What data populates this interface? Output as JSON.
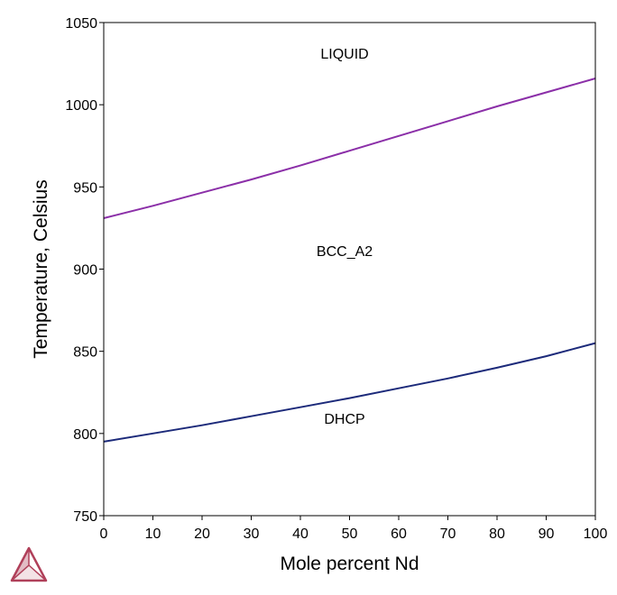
{
  "chart_data": {
    "type": "line",
    "title": "",
    "xlabel": "Mole percent Nd",
    "ylabel": "Temperature, Celsius",
    "xlim": [
      0,
      100
    ],
    "ylim": [
      750,
      1050
    ],
    "xticks": [
      0,
      10,
      20,
      30,
      40,
      50,
      60,
      70,
      80,
      90,
      100
    ],
    "yticks": [
      750,
      800,
      850,
      900,
      950,
      1000,
      1050
    ],
    "grid": false,
    "series": [
      {
        "color": "#8b2fa8",
        "x": [
          0,
          10,
          20,
          30,
          40,
          50,
          60,
          70,
          80,
          90,
          100
        ],
        "y": [
          931,
          938.5,
          946.5,
          954.5,
          963,
          972,
          981,
          990,
          999,
          1007.5,
          1016
        ]
      },
      {
        "color": "#1c2a7a",
        "x": [
          0,
          10,
          20,
          30,
          40,
          50,
          60,
          70,
          80,
          90,
          100
        ],
        "y": [
          795,
          800,
          805,
          810.5,
          816,
          821.5,
          827.5,
          833.5,
          840,
          847,
          855
        ]
      }
    ],
    "annotations": [
      {
        "text": "LIQUID",
        "x": 49,
        "y": 1028
      },
      {
        "text": "BCC_A2",
        "x": 49,
        "y": 908
      },
      {
        "text": "DHCP",
        "x": 49,
        "y": 806
      }
    ]
  },
  "logo": {
    "name": "thermo-calc-logo-icon",
    "color": "#b0405a"
  }
}
